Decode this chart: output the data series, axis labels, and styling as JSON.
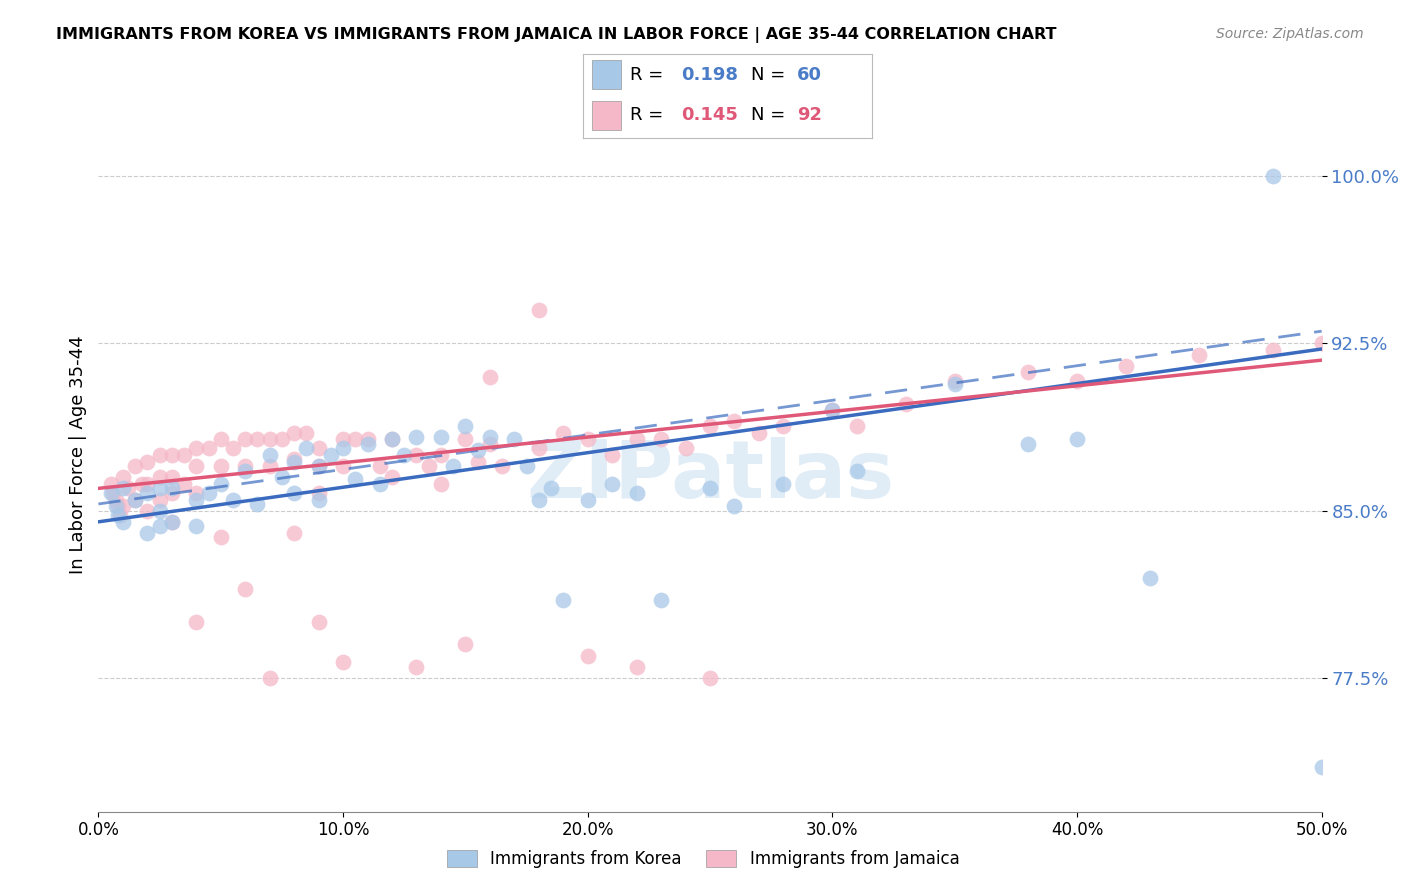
{
  "title": "IMMIGRANTS FROM KOREA VS IMMIGRANTS FROM JAMAICA IN LABOR FORCE | AGE 35-44 CORRELATION CHART",
  "source": "Source: ZipAtlas.com",
  "ylabel": "In Labor Force | Age 35-44",
  "ytick_labels": [
    "77.5%",
    "85.0%",
    "92.5%",
    "100.0%"
  ],
  "ytick_values": [
    0.775,
    0.85,
    0.925,
    1.0
  ],
  "xlim": [
    0.0,
    0.5
  ],
  "ylim": [
    0.715,
    1.035
  ],
  "blue_color": "#a8c8e8",
  "pink_color": "#f4b8c8",
  "blue_line_color": "#3a6bbf",
  "pink_line_color": "#e05878",
  "r_korea": 0.198,
  "n_korea": 60,
  "r_jamaica": 0.145,
  "n_jamaica": 92,
  "legend_label_korea": "Immigrants from Korea",
  "legend_label_jamaica": "Immigrants from Jamaica",
  "watermark": "ZIPatlas",
  "korea_intercept": 0.845,
  "korea_slope": 0.155,
  "jamaica_intercept": 0.86,
  "jamaica_slope": 0.115,
  "korea_x": [
    0.005,
    0.007,
    0.008,
    0.01,
    0.01,
    0.015,
    0.02,
    0.02,
    0.025,
    0.025,
    0.025,
    0.03,
    0.03,
    0.04,
    0.04,
    0.045,
    0.05,
    0.055,
    0.06,
    0.065,
    0.07,
    0.075,
    0.08,
    0.08,
    0.085,
    0.09,
    0.09,
    0.095,
    0.1,
    0.105,
    0.11,
    0.115,
    0.12,
    0.125,
    0.13,
    0.14,
    0.145,
    0.15,
    0.155,
    0.16,
    0.17,
    0.175,
    0.18,
    0.185,
    0.19,
    0.2,
    0.21,
    0.22,
    0.23,
    0.25,
    0.26,
    0.28,
    0.3,
    0.31,
    0.35,
    0.38,
    0.4,
    0.43,
    0.48,
    0.5
  ],
  "korea_y": [
    0.858,
    0.852,
    0.848,
    0.86,
    0.845,
    0.855,
    0.858,
    0.84,
    0.86,
    0.85,
    0.843,
    0.86,
    0.845,
    0.855,
    0.843,
    0.858,
    0.862,
    0.855,
    0.868,
    0.853,
    0.875,
    0.865,
    0.872,
    0.858,
    0.878,
    0.87,
    0.855,
    0.875,
    0.878,
    0.864,
    0.88,
    0.862,
    0.882,
    0.875,
    0.883,
    0.883,
    0.87,
    0.888,
    0.877,
    0.883,
    0.882,
    0.87,
    0.855,
    0.86,
    0.81,
    0.855,
    0.862,
    0.858,
    0.81,
    0.86,
    0.852,
    0.862,
    0.895,
    0.868,
    0.907,
    0.88,
    0.882,
    0.82,
    1.0,
    0.735
  ],
  "jamaica_x": [
    0.005,
    0.006,
    0.007,
    0.008,
    0.009,
    0.01,
    0.01,
    0.012,
    0.015,
    0.015,
    0.018,
    0.02,
    0.02,
    0.02,
    0.025,
    0.025,
    0.025,
    0.03,
    0.03,
    0.03,
    0.03,
    0.035,
    0.035,
    0.04,
    0.04,
    0.04,
    0.045,
    0.05,
    0.05,
    0.055,
    0.06,
    0.06,
    0.065,
    0.07,
    0.07,
    0.075,
    0.08,
    0.08,
    0.085,
    0.09,
    0.09,
    0.09,
    0.1,
    0.1,
    0.105,
    0.11,
    0.115,
    0.12,
    0.13,
    0.135,
    0.14,
    0.15,
    0.155,
    0.16,
    0.165,
    0.18,
    0.19,
    0.2,
    0.21,
    0.22,
    0.23,
    0.24,
    0.25,
    0.26,
    0.27,
    0.28,
    0.3,
    0.31,
    0.33,
    0.35,
    0.38,
    0.4,
    0.42,
    0.45,
    0.48,
    0.5,
    0.15,
    0.2,
    0.22,
    0.25,
    0.1,
    0.13,
    0.07,
    0.09,
    0.06,
    0.04,
    0.18,
    0.08,
    0.16,
    0.12,
    0.05,
    0.14
  ],
  "jamaica_y": [
    0.862,
    0.858,
    0.855,
    0.852,
    0.848,
    0.865,
    0.852,
    0.86,
    0.87,
    0.855,
    0.862,
    0.872,
    0.862,
    0.85,
    0.875,
    0.865,
    0.855,
    0.875,
    0.865,
    0.858,
    0.845,
    0.875,
    0.862,
    0.878,
    0.87,
    0.858,
    0.878,
    0.882,
    0.87,
    0.878,
    0.882,
    0.87,
    0.882,
    0.882,
    0.87,
    0.882,
    0.885,
    0.873,
    0.885,
    0.878,
    0.87,
    0.858,
    0.882,
    0.87,
    0.882,
    0.882,
    0.87,
    0.882,
    0.875,
    0.87,
    0.875,
    0.882,
    0.872,
    0.88,
    0.87,
    0.878,
    0.885,
    0.882,
    0.875,
    0.882,
    0.882,
    0.878,
    0.888,
    0.89,
    0.885,
    0.888,
    0.895,
    0.888,
    0.898,
    0.908,
    0.912,
    0.908,
    0.915,
    0.92,
    0.922,
    0.925,
    0.79,
    0.785,
    0.78,
    0.775,
    0.782,
    0.78,
    0.775,
    0.8,
    0.815,
    0.8,
    0.94,
    0.84,
    0.91,
    0.865,
    0.838,
    0.862
  ]
}
